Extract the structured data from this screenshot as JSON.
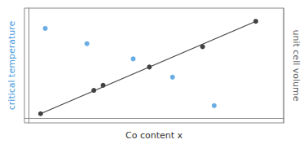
{
  "chart_data": {
    "type": "scatter",
    "xlabel": "Co content x",
    "ylabel": "critical temperature",
    "y2label": "unit cell volume",
    "xlim": [
      -0.02,
      1.1
    ],
    "xticks": [],
    "ylim": [
      -0.05,
      1.08
    ],
    "yticks": [],
    "y2lim": [
      -0.05,
      1.08
    ],
    "y2ticks": [],
    "tick_labels": false,
    "grid": false,
    "series": [
      {
        "type": "line",
        "axis": "y2",
        "color": "#444444",
        "x": [
          0.05,
          0.98
        ],
        "values": [
          0.04,
          0.95
        ]
      },
      {
        "type": "scatter",
        "axis": "y2",
        "color": "#111111",
        "x": [
          0.05,
          0.28,
          0.32,
          0.52,
          0.75,
          0.98
        ],
        "values": [
          0.04,
          0.27,
          0.32,
          0.5,
          0.7,
          0.95
        ]
      },
      {
        "type": "scatter",
        "color": "#4499dd",
        "x": [
          0.07,
          0.25,
          0.45,
          0.62,
          0.8
        ],
        "values": [
          0.88,
          0.73,
          0.58,
          0.4,
          0.12
        ]
      }
    ]
  }
}
